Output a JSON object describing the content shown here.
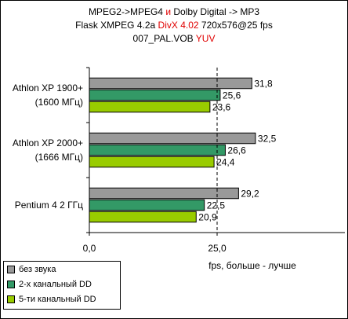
{
  "title": {
    "line1_a": "MPEG2->MPEG4 ",
    "line1_b": "и",
    "line1_c": " Dolby Digital -> MP3",
    "line2_a": "Flask XMPEG 4.2a ",
    "line2_b": "DivX 4.02",
    "line2_c": " 720x576@25 fps",
    "line3_a": "007_PAL.VOB ",
    "line3_b": "YUV"
  },
  "colors": {
    "series1": "#999999",
    "series2": "#339966",
    "series3": "#99cc00",
    "highlight": "#e00000"
  },
  "chart_data": {
    "type": "bar",
    "orientation": "horizontal",
    "categories": [
      [
        "Athlon XP 1900+",
        "(1600 МГц)"
      ],
      [
        "Athlon XP 2000+",
        "(1666 МГц)"
      ],
      [
        "Pentium 4 2 ГГц"
      ]
    ],
    "series": [
      {
        "name": "без звука",
        "values": [
          31.8,
          32.5,
          29.2
        ],
        "labels": [
          "31,8",
          "32,5",
          "29,2"
        ]
      },
      {
        "name": "2-х канальный DD",
        "values": [
          25.6,
          26.6,
          22.5
        ],
        "labels": [
          "25,6",
          "26,6",
          "22,5"
        ]
      },
      {
        "name": "5-ти канальный DD",
        "values": [
          23.6,
          24.4,
          20.9
        ],
        "labels": [
          "23,6",
          "24,4",
          "20,9"
        ]
      }
    ],
    "xlim": [
      0,
      50
    ],
    "xticks": [
      0,
      25
    ],
    "xtick_labels": [
      "0,0",
      "25,0"
    ],
    "reference_line": 25,
    "xlabel": "fps, больше - лучше",
    "legend_position": "bottom-left"
  }
}
